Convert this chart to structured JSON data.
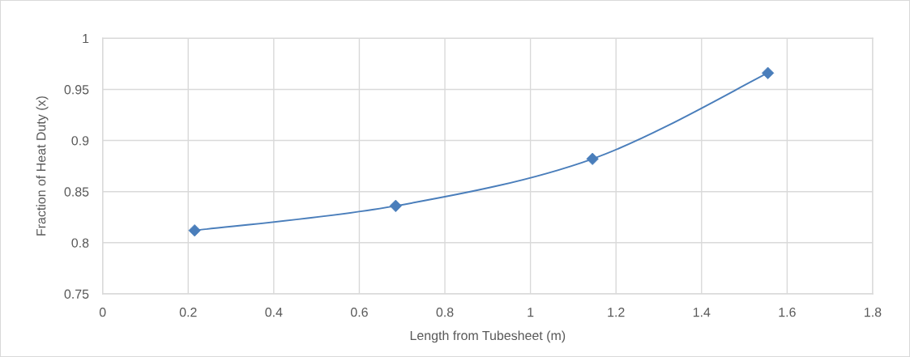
{
  "chart_data": {
    "type": "line",
    "xlabel": "Length from Tubesheet (m)",
    "ylabel": "Fraction of Heat Duty (x)",
    "x": [
      0.215,
      0.685,
      1.145,
      1.555
    ],
    "series": [
      {
        "color": "#4a7ebb",
        "values": [
          0.812,
          0.836,
          0.882,
          0.966
        ]
      }
    ],
    "xlim": [
      0,
      1.8
    ],
    "xticks": [
      0,
      0.2,
      0.4,
      0.6,
      0.8,
      1,
      1.2,
      1.4,
      1.6,
      1.8
    ],
    "ylim": [
      0.75,
      1
    ],
    "yticks": [
      0.75,
      0.8,
      0.85,
      0.9,
      0.95,
      1
    ],
    "grid": true,
    "marker": "diamond",
    "line_style": "solid"
  }
}
